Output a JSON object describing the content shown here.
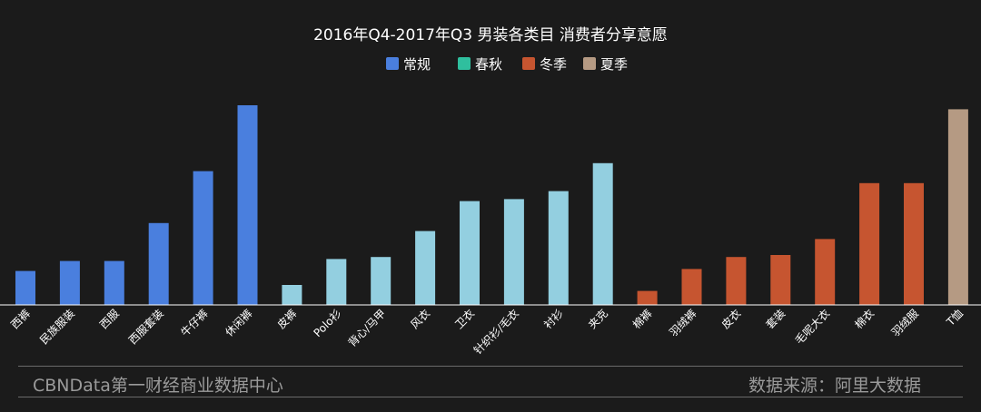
{
  "chart_data": {
    "type": "bar",
    "title": "2016年Q4-2017年Q3 男装各类目 消费者分享意愿",
    "categories": [
      "西裤",
      "民族服装",
      "西服",
      "西服套装",
      "牛仔裤",
      "休闲裤",
      "皮裤",
      "Polo衫",
      "背心/马甲",
      "风衣",
      "卫衣",
      "针织衫/毛衣",
      "衬衫",
      "夹克",
      "棉裤",
      "羽绒裤",
      "皮衣",
      "套装",
      "毛呢大衣",
      "棉衣",
      "羽绒服",
      "T恤"
    ],
    "values": [
      17,
      22,
      22,
      41,
      67,
      100,
      10,
      23,
      24,
      37,
      52,
      53,
      57,
      71,
      7,
      18,
      24,
      25,
      33,
      61,
      61,
      98
    ],
    "groups": [
      0,
      0,
      0,
      0,
      0,
      0,
      1,
      1,
      1,
      1,
      1,
      1,
      1,
      1,
      2,
      2,
      2,
      2,
      2,
      2,
      2,
      3
    ],
    "legend": [
      {
        "name": "常规",
        "color": "#4a7fde"
      },
      {
        "name": "春秋",
        "color": "#2fbf9e"
      },
      {
        "name": "冬季",
        "color": "#c65530"
      },
      {
        "name": "夏季",
        "color": "#b59a83"
      }
    ],
    "bar_colors": [
      "#4a7fde",
      "#93cfe0",
      "#c65530",
      "#b59a83"
    ],
    "ylim": [
      0,
      100
    ],
    "grid": false,
    "legend_position": "top-center"
  },
  "footer": {
    "source_brand": "CBNData第一财经商业数据中心",
    "source_note": "数据来源：阿里大数据"
  }
}
